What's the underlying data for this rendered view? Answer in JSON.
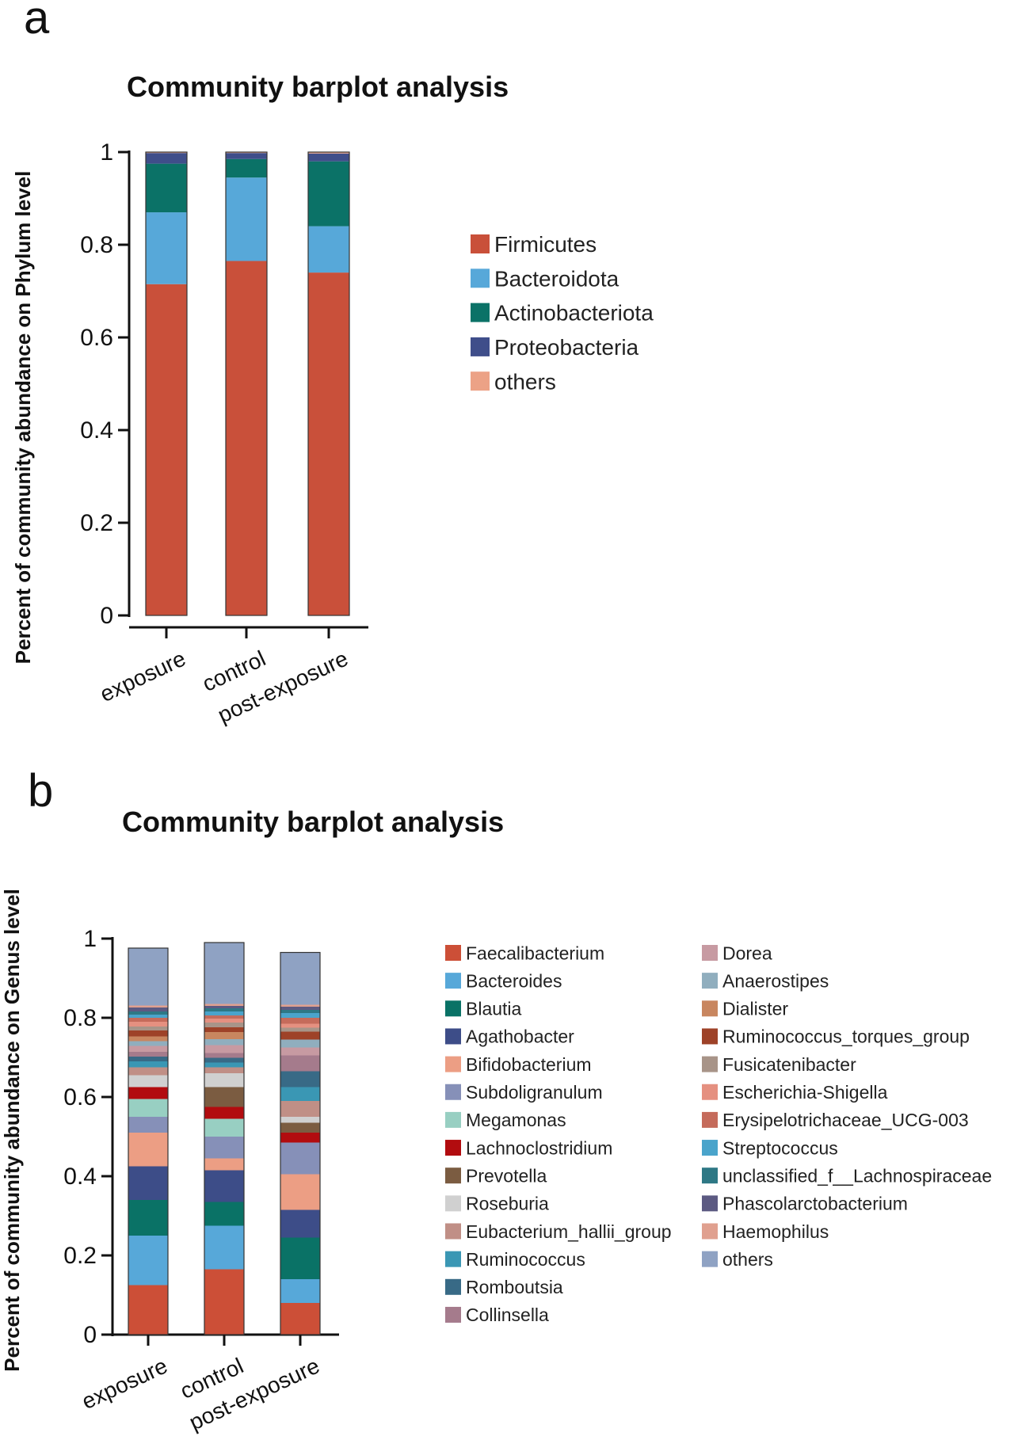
{
  "panels": [
    {
      "label": "a",
      "chart_data": {
        "type": "bar",
        "stacked": true,
        "title": "Community barplot analysis",
        "ylabel": "Percent of community abundance on Phylum level",
        "xlabel": "",
        "ylim": [
          0,
          1
        ],
        "yticks": [
          "0",
          "0.2",
          "0.4",
          "0.6",
          "0.8",
          "1"
        ],
        "categories": [
          "exposure",
          "control",
          "post-exposure"
        ],
        "series": [
          {
            "name": "Firmicutes",
            "color": "#c9503a",
            "values": [
              0.715,
              0.765,
              0.74
            ]
          },
          {
            "name": "Bacteroidota",
            "color": "#57a8d9",
            "values": [
              0.155,
              0.18,
              0.1
            ]
          },
          {
            "name": "Actinobacteriota",
            "color": "#0b7267",
            "values": [
              0.105,
              0.04,
              0.14
            ]
          },
          {
            "name": "Proteobacteria",
            "color": "#3f4e8a",
            "values": [
              0.023,
              0.013,
              0.017
            ]
          },
          {
            "name": "others",
            "color": "#eca286",
            "values": [
              0.002,
              0.002,
              0.003
            ]
          }
        ],
        "legend": "right",
        "grid": false
      }
    },
    {
      "label": "b",
      "chart_data": {
        "type": "bar",
        "stacked": true,
        "title": "Community barplot analysis",
        "ylabel": "Percent of community abundance on Genus level",
        "xlabel": "",
        "ylim": [
          0,
          1
        ],
        "yticks": [
          "0",
          "0.2",
          "0.4",
          "0.6",
          "0.8",
          "1"
        ],
        "categories": [
          "exposure",
          "control",
          "post-exposure"
        ],
        "series": [
          {
            "name": "Faecalibacterium",
            "color": "#cc4f37",
            "values": [
              0.125,
              0.165,
              0.08
            ]
          },
          {
            "name": "Bacteroides",
            "color": "#57a8d9",
            "values": [
              0.125,
              0.11,
              0.06
            ]
          },
          {
            "name": "Blautia",
            "color": "#0a7266",
            "values": [
              0.09,
              0.06,
              0.105
            ]
          },
          {
            "name": "Agathobacter",
            "color": "#3d4d88",
            "values": [
              0.085,
              0.08,
              0.07
            ]
          },
          {
            "name": "Bifidobacterium",
            "color": "#ec9e84",
            "values": [
              0.085,
              0.03,
              0.09
            ]
          },
          {
            "name": "Subdoligranulum",
            "color": "#8690b8",
            "values": [
              0.04,
              0.055,
              0.08
            ]
          },
          {
            "name": "Megamonas",
            "color": "#98cfc2",
            "values": [
              0.045,
              0.045,
              0.0
            ]
          },
          {
            "name": "Lachnoclostridium",
            "color": "#b20c0f",
            "values": [
              0.03,
              0.03,
              0.025
            ]
          },
          {
            "name": "Prevotella",
            "color": "#7b5c41",
            "values": [
              0.0,
              0.05,
              0.025
            ]
          },
          {
            "name": "Roseburia",
            "color": "#d0d0d0",
            "values": [
              0.03,
              0.035,
              0.015
            ]
          },
          {
            "name": "Eubacterium_hallii_group",
            "color": "#c08f86",
            "values": [
              0.02,
              0.015,
              0.04
            ]
          },
          {
            "name": "Ruminococcus",
            "color": "#3a97b4",
            "values": [
              0.015,
              0.012,
              0.035
            ]
          },
          {
            "name": "Romboutsia",
            "color": "#386a86",
            "values": [
              0.012,
              0.012,
              0.04
            ]
          },
          {
            "name": "Collinsella",
            "color": "#a57b8c",
            "values": [
              0.012,
              0.012,
              0.04
            ]
          },
          {
            "name": "Dorea",
            "color": "#c79aa2",
            "values": [
              0.015,
              0.02,
              0.02
            ]
          },
          {
            "name": "Anaerostipes",
            "color": "#90aebe",
            "values": [
              0.012,
              0.015,
              0.02
            ]
          },
          {
            "name": "Dialister",
            "color": "#c8865f",
            "values": [
              0.012,
              0.018,
              0.0
            ]
          },
          {
            "name": "Ruminococcus_torques_group",
            "color": "#9e4228",
            "values": [
              0.015,
              0.012,
              0.02
            ]
          },
          {
            "name": "Fusicatenibacter",
            "color": "#a89488",
            "values": [
              0.01,
              0.012,
              0.01
            ]
          },
          {
            "name": "Escherichia-Shigella",
            "color": "#e59080",
            "values": [
              0.012,
              0.01,
              0.01
            ]
          },
          {
            "name": "Erysipelotrichaceae_UCG-003",
            "color": "#c56b5b",
            "values": [
              0.01,
              0.008,
              0.015
            ]
          },
          {
            "name": "Streptococcus",
            "color": "#4aa4cb",
            "values": [
              0.008,
              0.01,
              0.012
            ]
          },
          {
            "name": "unclassified_f__Lachnospiraceae",
            "color": "#2e7885",
            "values": [
              0.008,
              0.008,
              0.008
            ]
          },
          {
            "name": "Phascolarctobacterium",
            "color": "#5c5a82",
            "values": [
              0.01,
              0.006,
              0.008
            ]
          },
          {
            "name": "Haemophilus",
            "color": "#e0a08f",
            "values": [
              0.005,
              0.005,
              0.005
            ]
          },
          {
            "name": "others",
            "color": "#8fa2c3",
            "values": [
              0.145,
              0.155,
              0.132
            ]
          }
        ],
        "legend": "right",
        "grid": false
      }
    }
  ]
}
